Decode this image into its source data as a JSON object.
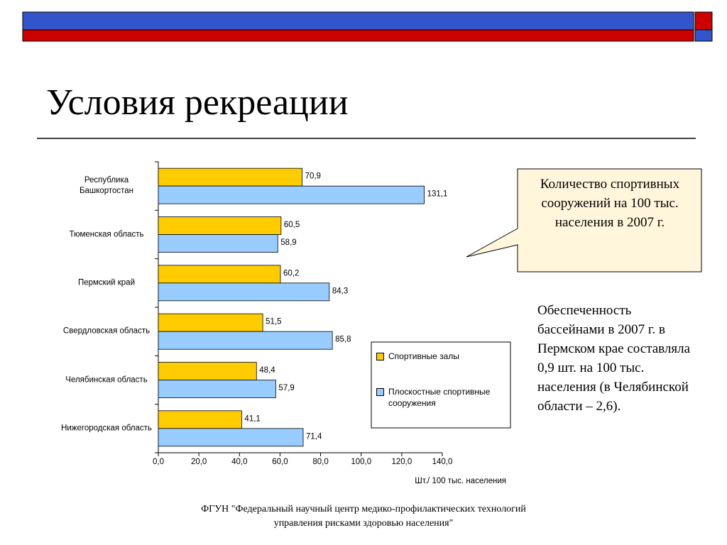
{
  "header": {
    "title": "Условия рекреации"
  },
  "chart_data": {
    "type": "hbar",
    "categories": [
      "Республика Башкортостан",
      "Тюменская область",
      "Пермский край",
      "Свердловская область",
      "Челябинская область",
      "Нижегородская область"
    ],
    "series": [
      {
        "name": "Спортивные залы",
        "color": "#ffcc00",
        "values": [
          70.9,
          60.5,
          60.2,
          51.5,
          48.4,
          41.1
        ],
        "value_labels": [
          "70,9",
          "60,5",
          "60,2",
          "51,5",
          "48,4",
          "41,1"
        ]
      },
      {
        "name": "Плоскостные спортивные сооружения",
        "color": "#99ccff",
        "values": [
          131.1,
          58.9,
          84.3,
          85.8,
          57.9,
          71.4
        ],
        "value_labels": [
          "131,1",
          "58,9",
          "84,3",
          "85,8",
          "57,9",
          "71,4"
        ]
      }
    ],
    "xlim": [
      0,
      140
    ],
    "xticks": [
      {
        "value": 0,
        "label": "0,0"
      },
      {
        "value": 20,
        "label": "20,0"
      },
      {
        "value": 40,
        "label": "40,0"
      },
      {
        "value": 60,
        "label": "60,0"
      },
      {
        "value": 80,
        "label": "80,0"
      },
      {
        "value": 100,
        "label": "100,0"
      },
      {
        "value": 120,
        "label": "120,0"
      },
      {
        "value": 140,
        "label": "140,0"
      }
    ],
    "x_label": "Шт./ 100 тыс. населения"
  },
  "callout": "Количество спортивных сооружений на 100 тыс. населения в 2007 г.",
  "note": "Обеспеченность бассейнами в 2007 г. в Пермском крае составляла 0,9 шт. на 100 тыс. населения (в Челябинской области – 2,6).",
  "footer": [
    "ФГУН \"Федеральный научный центр медико-профилактических технологий",
    "управления рисками здоровью населения\""
  ]
}
